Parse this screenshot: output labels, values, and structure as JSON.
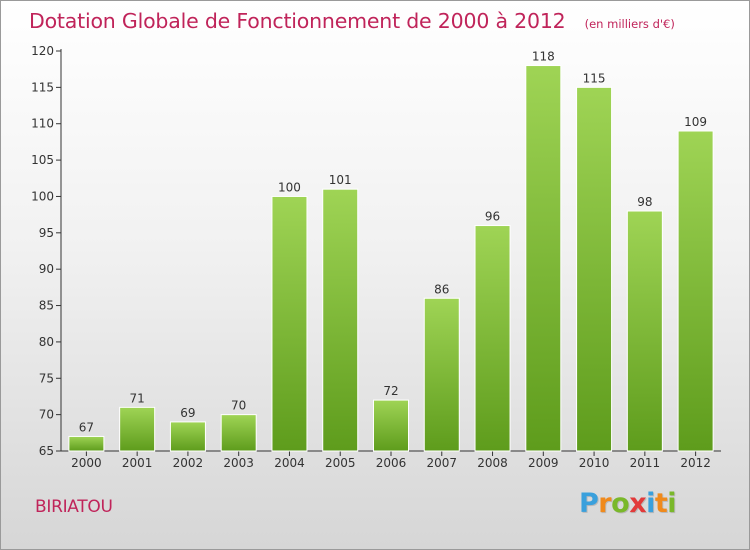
{
  "title": "Dotation Globale de Fonctionnement de 2000 à 2012",
  "subtitle": "(en milliers d'€)",
  "commune": "BIRIATOU",
  "brand": {
    "name": "Proxiti",
    "letters": [
      {
        "ch": "P",
        "color": "#3aa0dc"
      },
      {
        "ch": "r",
        "color": "#f08a1c"
      },
      {
        "ch": "o",
        "color": "#7ab82a"
      },
      {
        "ch": "x",
        "color": "#e23a3a"
      },
      {
        "ch": "i",
        "color": "#3aa0dc"
      },
      {
        "ch": "t",
        "color": "#f08a1c"
      },
      {
        "ch": "i",
        "color": "#7ab82a"
      }
    ]
  },
  "colors": {
    "title": "#c0245a",
    "bar_top": "#9fd455",
    "bar_bottom": "#5e9c1c",
    "axis": "#333333",
    "grid": "#bbbbbb"
  },
  "chart_data": {
    "type": "bar",
    "title": "Dotation Globale de Fonctionnement de 2000 à 2012",
    "subtitle": "(en milliers d'€)",
    "categories": [
      "2000",
      "2001",
      "2002",
      "2003",
      "2004",
      "2005",
      "2006",
      "2007",
      "2008",
      "2009",
      "2010",
      "2011",
      "2012"
    ],
    "values": [
      67,
      71,
      69,
      70,
      100,
      101,
      72,
      86,
      96,
      118,
      115,
      98,
      109
    ],
    "ylim": [
      65,
      120
    ],
    "yticks": [
      65,
      70,
      75,
      80,
      85,
      90,
      95,
      100,
      105,
      110,
      115,
      120
    ],
    "xlabel": "",
    "ylabel": "",
    "grid": false,
    "data_labels": true
  }
}
